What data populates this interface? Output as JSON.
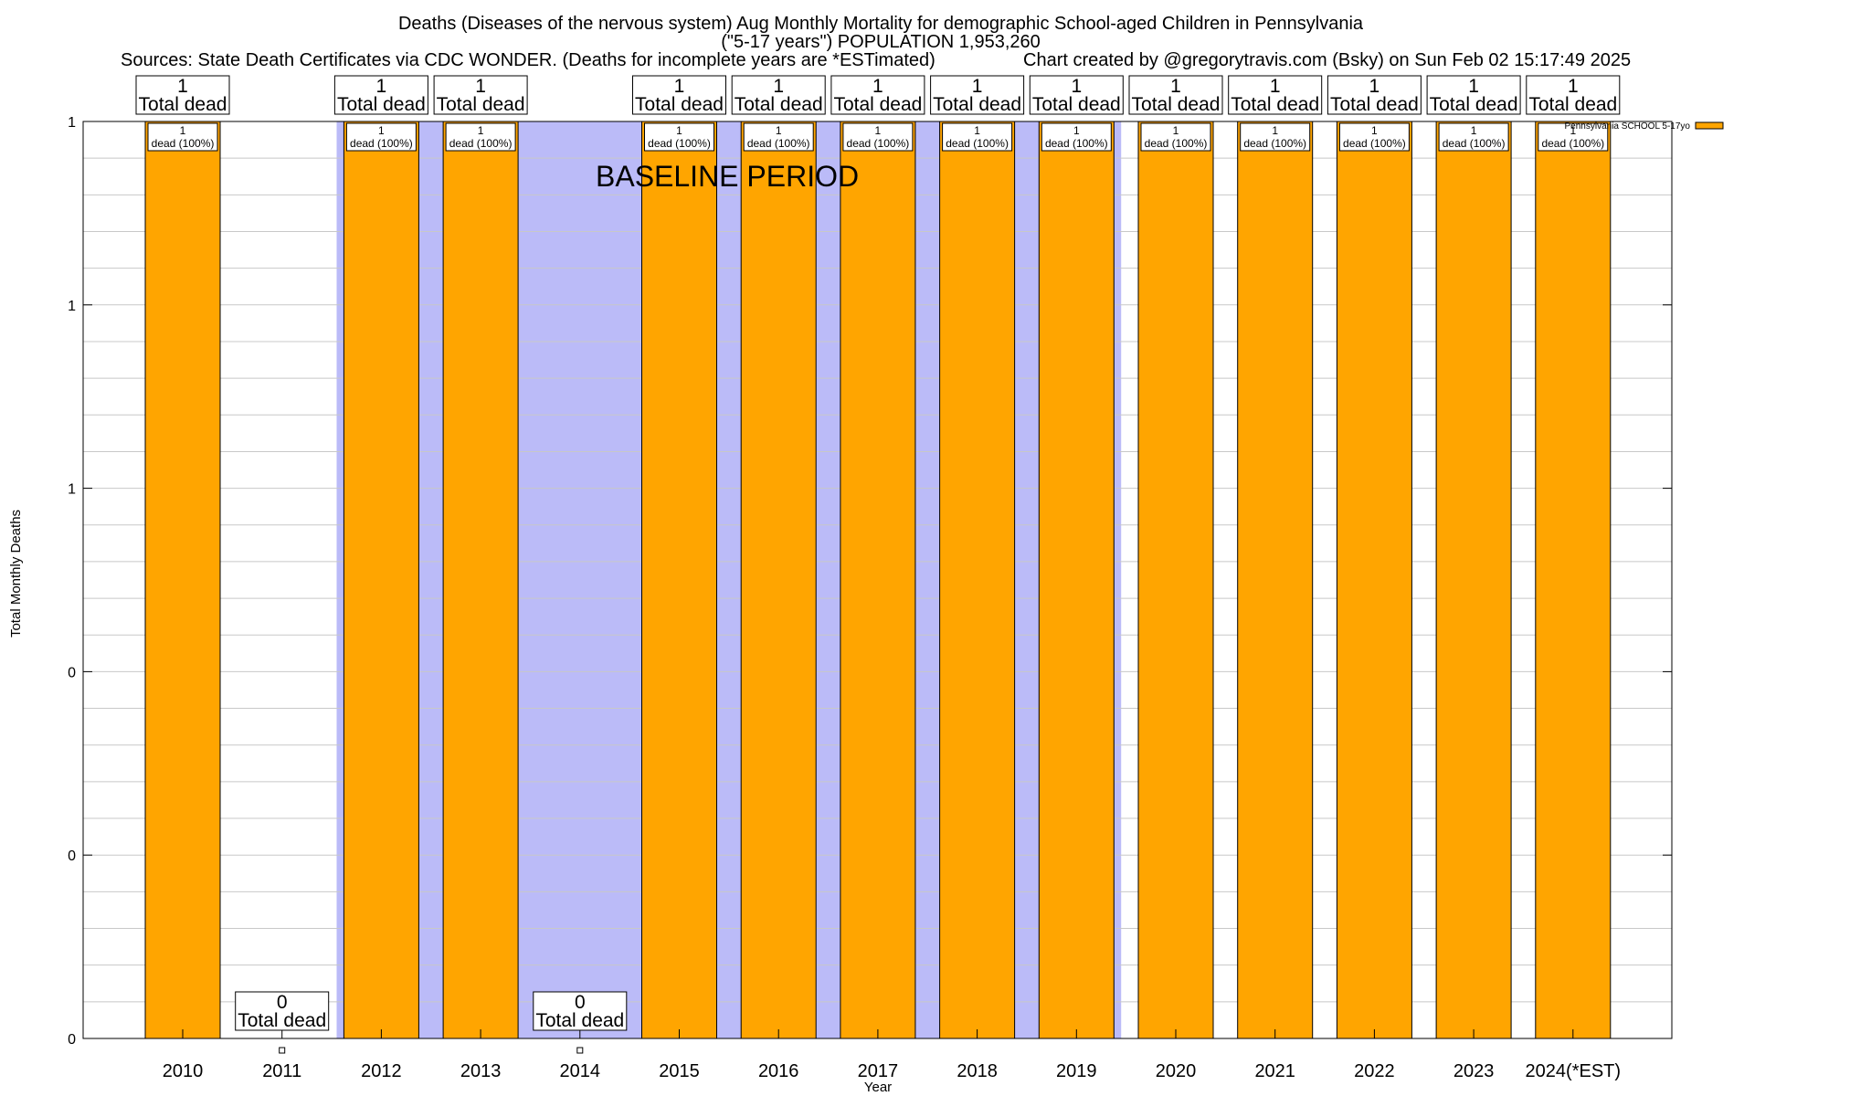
{
  "chart_data": {
    "type": "bar",
    "title_lines": [
      "Deaths (Diseases of the nervous system) Aug Monthly Mortality for demographic School-aged Children in Pennsylvania",
      "(\"5-17 years\") POPULATION 1,953,260"
    ],
    "sources": "Sources: State Death Certificates via CDC WONDER. (Deaths for incomplete years are *ESTimated)",
    "credit": "Chart created by @gregorytravis.com (Bsky) on Sun Feb 02 15:17:49 2025",
    "xlabel": "Year",
    "ylabel": "Total Monthly Deaths",
    "categories": [
      "2010",
      "2011",
      "2012",
      "2013",
      "2014",
      "2015",
      "2016",
      "2017",
      "2018",
      "2019",
      "2020",
      "2021",
      "2022",
      "2023",
      "2024(*EST)"
    ],
    "series": [
      {
        "name": "Pennsylvania SCHOOL 5-17yo",
        "color": "#ffa500",
        "values": [
          1,
          0,
          1,
          1,
          0,
          1,
          1,
          1,
          1,
          1,
          1,
          1,
          1,
          1,
          1
        ]
      }
    ],
    "total_labels": [
      "1",
      "0",
      "1",
      "1",
      "0",
      "1",
      "1",
      "1",
      "1",
      "1",
      "1",
      "1",
      "1",
      "1",
      "1"
    ],
    "total_suffix": "Total dead",
    "segment_labels": [
      "1",
      "",
      "1",
      "1",
      "",
      "1",
      "1",
      "1",
      "1",
      "1",
      "1",
      "1",
      "1",
      "1",
      "1"
    ],
    "segment_pct": "dead (100%)",
    "ylim": [
      0,
      1
    ],
    "ytick_labels": [
      "0",
      "0",
      "0",
      "1",
      "1",
      "1"
    ],
    "baseline_period": {
      "label": "BASELINE PERIOD",
      "from": "2012",
      "to": "2019",
      "color": "#bbbbf8"
    },
    "legend": {
      "label": "Pennsylvania SCHOOL 5-17yo",
      "position": "top-right"
    },
    "grid": true
  }
}
